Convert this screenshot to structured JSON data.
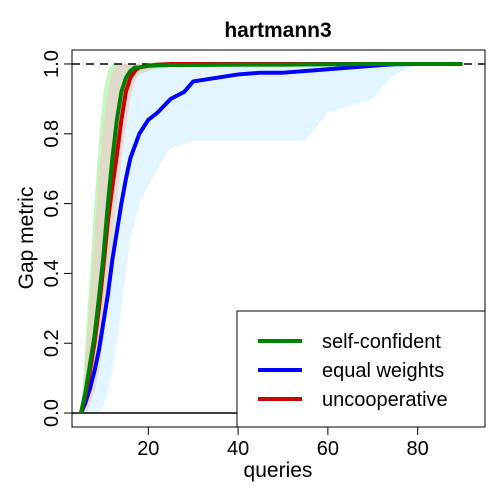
{
  "chart_data": {
    "type": "line",
    "title": "hartmann3",
    "xlabel": "queries",
    "ylabel": "Gap metric",
    "xlim": [
      3,
      95
    ],
    "ylim": [
      -0.04,
      1.04
    ],
    "xticks": [
      20,
      40,
      60,
      80
    ],
    "yticks": [
      0.0,
      0.2,
      0.4,
      0.6,
      0.8,
      1.0
    ],
    "ytick_labels": [
      "0.0",
      "0.2",
      "0.4",
      "0.6",
      "0.8",
      "1.0"
    ],
    "reference_lines": [
      {
        "y": 1.0,
        "style": "dashed",
        "color": "#000000"
      },
      {
        "y": 0.0,
        "style": "solid",
        "color": "#000000"
      }
    ],
    "legend_position": "bottom-right",
    "series": [
      {
        "name": "self-confident",
        "color": "#008000",
        "band_color": "#90ee90",
        "x": [
          5,
          6,
          7,
          8,
          9,
          10,
          11,
          12,
          13,
          14,
          15,
          16,
          17,
          18,
          20,
          25,
          30,
          40,
          50,
          60,
          70,
          76,
          90
        ],
        "values": [
          0.0,
          0.06,
          0.14,
          0.22,
          0.33,
          0.45,
          0.6,
          0.73,
          0.84,
          0.92,
          0.96,
          0.98,
          0.99,
          0.99,
          0.995,
          0.997,
          0.997,
          0.998,
          0.998,
          0.999,
          1.0,
          1.0,
          1.0
        ],
        "band_lower": [
          0.0,
          0.02,
          0.06,
          0.1,
          0.18,
          0.28,
          0.4,
          0.55,
          0.68,
          0.8,
          0.88,
          0.93,
          0.96,
          0.97,
          0.98,
          0.99,
          0.99,
          0.99,
          0.99,
          0.99,
          1.0,
          1.0,
          1.0
        ],
        "band_upper": [
          0.0,
          0.2,
          0.4,
          0.6,
          0.78,
          0.92,
          0.98,
          1.0,
          1.0,
          1.0,
          1.0,
          1.0,
          1.0,
          1.0,
          1.0,
          1.0,
          1.0,
          1.0,
          1.0,
          1.0,
          1.0,
          1.0,
          1.0
        ]
      },
      {
        "name": "equal weights",
        "color": "#0000ff",
        "band_color": "#cceeff",
        "x": [
          5,
          6,
          7,
          8,
          9,
          10,
          11,
          12,
          13,
          14,
          15,
          16,
          18,
          20,
          22,
          25,
          28,
          30,
          35,
          40,
          45,
          50,
          55,
          60,
          65,
          70,
          72,
          75,
          80,
          85,
          90
        ],
        "values": [
          0.0,
          0.03,
          0.07,
          0.12,
          0.18,
          0.26,
          0.34,
          0.44,
          0.52,
          0.6,
          0.67,
          0.73,
          0.8,
          0.84,
          0.86,
          0.9,
          0.92,
          0.95,
          0.96,
          0.97,
          0.975,
          0.975,
          0.98,
          0.985,
          0.99,
          0.995,
          0.997,
          0.999,
          1.0,
          1.0,
          1.0
        ],
        "band_lower": [
          0.0,
          0.0,
          0.0,
          0.0,
          0.0,
          0.02,
          0.06,
          0.12,
          0.2,
          0.3,
          0.4,
          0.5,
          0.6,
          0.65,
          0.7,
          0.76,
          0.77,
          0.78,
          0.78,
          0.78,
          0.78,
          0.78,
          0.78,
          0.86,
          0.88,
          0.9,
          0.93,
          0.97,
          1.0,
          1.0,
          1.0
        ],
        "band_upper": [
          0.0,
          0.08,
          0.2,
          0.35,
          0.55,
          0.75,
          0.9,
          0.97,
          0.99,
          1.0,
          1.0,
          1.0,
          1.0,
          1.0,
          1.0,
          1.0,
          1.0,
          1.0,
          1.0,
          1.0,
          1.0,
          1.0,
          1.0,
          1.0,
          1.0,
          1.0,
          1.0,
          1.0,
          1.0,
          1.0,
          1.0
        ]
      },
      {
        "name": "uncooperative",
        "color": "#cc0000",
        "band_color": "#f4c7b8",
        "x": [
          5,
          6,
          7,
          8,
          9,
          10,
          11,
          12,
          13,
          14,
          15,
          16,
          17,
          18,
          20,
          22,
          25,
          27,
          30,
          40,
          60,
          90
        ],
        "values": [
          0.0,
          0.05,
          0.12,
          0.2,
          0.3,
          0.42,
          0.55,
          0.65,
          0.74,
          0.84,
          0.92,
          0.96,
          0.98,
          0.99,
          0.995,
          0.998,
          1.0,
          1.0,
          1.0,
          1.0,
          1.0,
          1.0
        ],
        "band_lower": [
          0.0,
          0.0,
          0.02,
          0.06,
          0.12,
          0.22,
          0.35,
          0.48,
          0.6,
          0.72,
          0.82,
          0.9,
          0.95,
          0.97,
          0.98,
          0.99,
          1.0,
          1.0,
          1.0,
          1.0,
          1.0,
          1.0
        ],
        "band_upper": [
          0.0,
          0.15,
          0.32,
          0.5,
          0.68,
          0.82,
          0.92,
          0.98,
          1.0,
          1.0,
          1.0,
          1.0,
          1.0,
          1.0,
          1.0,
          1.0,
          1.0,
          1.0,
          1.0,
          1.0,
          1.0,
          1.0
        ]
      }
    ]
  }
}
